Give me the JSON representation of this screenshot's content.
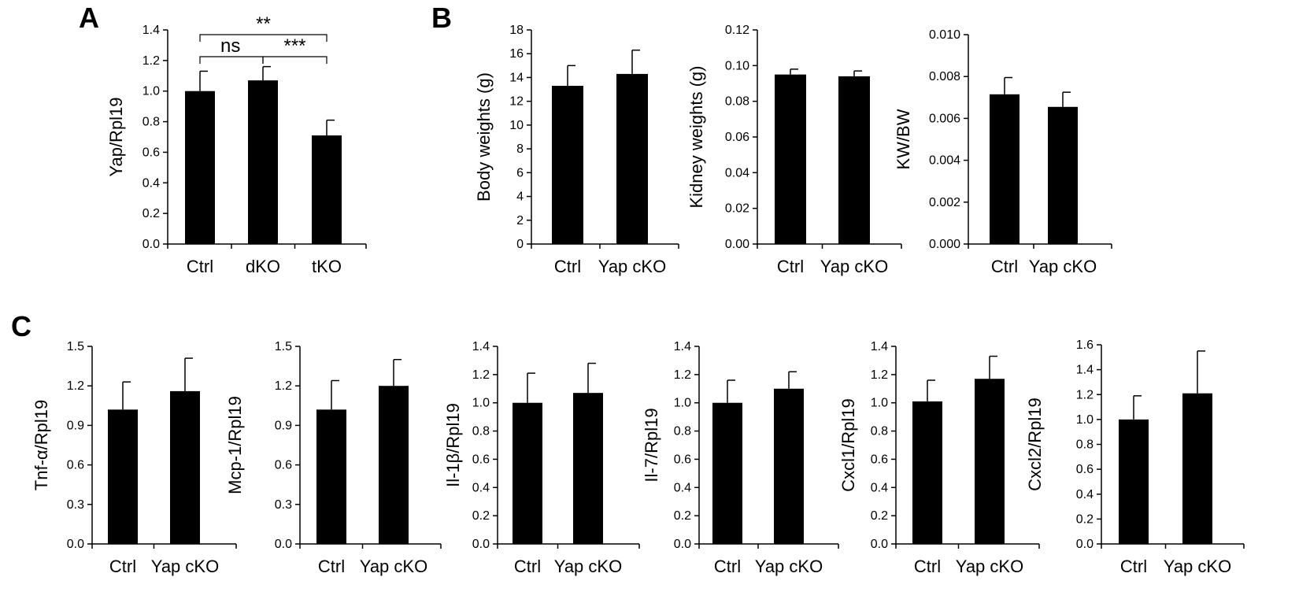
{
  "panels": [
    {
      "label": "A"
    },
    {
      "label": "B"
    },
    {
      "label": "C"
    }
  ],
  "chart_data": [
    {
      "type": "bar",
      "panel": "A",
      "ylabel": "Yap/Rpl19",
      "categories": [
        "Ctrl",
        "dKO",
        "tKO"
      ],
      "values": [
        1.0,
        1.07,
        0.71
      ],
      "errors": [
        0.13,
        0.09,
        0.1
      ],
      "ylim": [
        0,
        1.4
      ],
      "yticks": [
        "0.0",
        "0.2",
        "0.4",
        "0.6",
        "0.8",
        "1.0",
        "1.2",
        "1.4"
      ],
      "annotations": [
        {
          "from": 0,
          "to": 2,
          "text": "**"
        },
        {
          "from": 0,
          "to": 1,
          "text": "ns"
        },
        {
          "from": 1,
          "to": 2,
          "text": "***"
        }
      ]
    },
    {
      "type": "bar",
      "panel": "B",
      "ylabel": "Body weights (g)",
      "categories": [
        "Ctrl",
        "Yap cKO"
      ],
      "values": [
        13.3,
        14.3
      ],
      "errors": [
        1.7,
        2.0
      ],
      "ylim": [
        0,
        18
      ],
      "yticks": [
        "0",
        "2",
        "4",
        "6",
        "8",
        "10",
        "12",
        "14",
        "16",
        "18"
      ]
    },
    {
      "type": "bar",
      "panel": "B",
      "ylabel": "Kidney weights (g)",
      "categories": [
        "Ctrl",
        "Yap cKO"
      ],
      "values": [
        0.095,
        0.094
      ],
      "errors": [
        0.003,
        0.003
      ],
      "ylim": [
        0,
        0.12
      ],
      "yticks": [
        "0.00",
        "0.02",
        "0.04",
        "0.06",
        "0.08",
        "0.10",
        "0.12"
      ]
    },
    {
      "type": "bar",
      "panel": "B",
      "ylabel": "KW/BW",
      "categories": [
        "Ctrl",
        "Yap cKO"
      ],
      "values": [
        0.00715,
        0.00655
      ],
      "errors": [
        0.0008,
        0.0007
      ],
      "ylim": [
        0,
        0.01
      ],
      "yticks": [
        "0.000",
        "0.002",
        "0.004",
        "0.006",
        "0.008",
        "0.010"
      ]
    },
    {
      "type": "bar",
      "panel": "C",
      "ylabel": "Tnf-α/Rpl19",
      "categories": [
        "Ctrl",
        "Yap cKO"
      ],
      "values": [
        1.02,
        1.16
      ],
      "errors": [
        0.21,
        0.25
      ],
      "ylim": [
        0,
        1.5
      ],
      "yticks": [
        "0.0",
        "0.3",
        "0.6",
        "0.9",
        "1.2",
        "1.5"
      ]
    },
    {
      "type": "bar",
      "panel": "C",
      "ylabel": "Mcp-1/Rpl19",
      "categories": [
        "Ctrl",
        "Yap cKO"
      ],
      "values": [
        1.02,
        1.2
      ],
      "errors": [
        0.22,
        0.2
      ],
      "ylim": [
        0,
        1.5
      ],
      "yticks": [
        "0.0",
        "0.3",
        "0.6",
        "0.9",
        "1.2",
        "1.5"
      ]
    },
    {
      "type": "bar",
      "panel": "C",
      "ylabel": "Il-1β/Rpl19",
      "categories": [
        "Ctrl",
        "Yap cKO"
      ],
      "values": [
        1.0,
        1.07
      ],
      "errors": [
        0.21,
        0.21
      ],
      "ylim": [
        0,
        1.4
      ],
      "yticks": [
        "0.0",
        "0.2",
        "0.4",
        "0.6",
        "0.8",
        "1.0",
        "1.2",
        "1.4"
      ]
    },
    {
      "type": "bar",
      "panel": "C",
      "ylabel": "Il-7/Rpl19",
      "categories": [
        "Ctrl",
        "Yap cKO"
      ],
      "values": [
        1.0,
        1.1
      ],
      "errors": [
        0.16,
        0.12
      ],
      "ylim": [
        0,
        1.4
      ],
      "yticks": [
        "0.0",
        "0.2",
        "0.4",
        "0.6",
        "0.8",
        "1.0",
        "1.2",
        "1.4"
      ]
    },
    {
      "type": "bar",
      "panel": "C",
      "ylabel": "Cxcl1/Rpl19",
      "categories": [
        "Ctrl",
        "Yap cKO"
      ],
      "values": [
        1.01,
        1.17
      ],
      "errors": [
        0.15,
        0.16
      ],
      "ylim": [
        0,
        1.4
      ],
      "yticks": [
        "0.0",
        "0.2",
        "0.4",
        "0.6",
        "0.8",
        "1.0",
        "1.2",
        "1.4"
      ]
    },
    {
      "type": "bar",
      "panel": "C",
      "ylabel": "Cxcl2/Rpl19",
      "categories": [
        "Ctrl",
        "Yap cKO"
      ],
      "values": [
        1.0,
        1.21
      ],
      "errors": [
        0.19,
        0.34
      ],
      "ylim": [
        0,
        1.6
      ],
      "yticks": [
        "0.0",
        "0.2",
        "0.4",
        "0.6",
        "0.8",
        "1.0",
        "1.2",
        "1.4",
        "1.6"
      ]
    }
  ]
}
